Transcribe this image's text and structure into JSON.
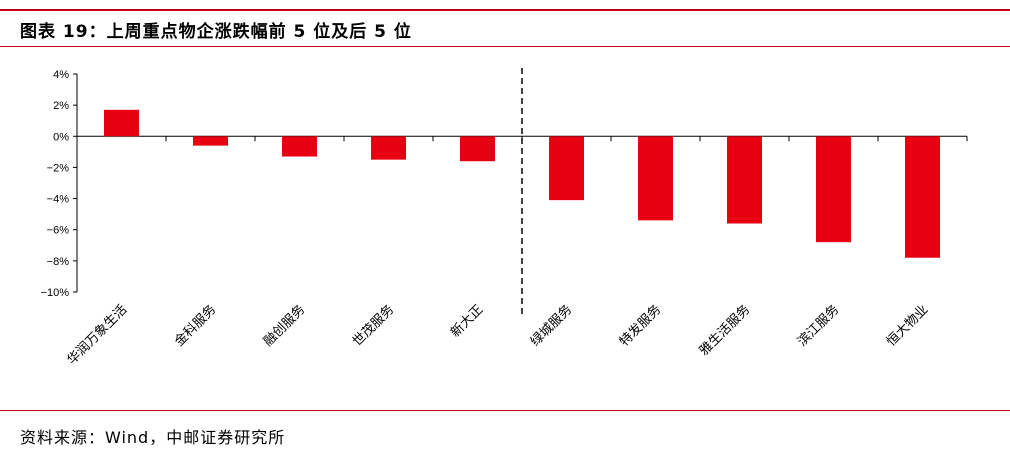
{
  "header": {
    "title": "图表 19：上周重点物企涨跌幅前 5 位及后 5 位"
  },
  "footer": {
    "source": "资料来源：Wind，中邮证券研究所"
  },
  "chart_data": {
    "type": "bar",
    "title": "",
    "xlabel": "",
    "ylabel": "",
    "categories": [
      "华润万象生活",
      "金科服务",
      "融创服务",
      "世茂服务",
      "新大正",
      "绿城服务",
      "特发服务",
      "雅生活服务",
      "滨江服务",
      "恒大物业"
    ],
    "values": [
      1.7,
      -0.6,
      -1.3,
      -1.5,
      -1.6,
      -4.1,
      -5.4,
      -5.6,
      -6.8,
      -7.8
    ],
    "ylim": [
      -10,
      4
    ],
    "yticks": [
      4,
      2,
      0,
      -2,
      -4,
      -6,
      -8,
      -10
    ],
    "ytick_labels": [
      "4%",
      "2%",
      "0%",
      "−2%",
      "−4%",
      "−6%",
      "−8%",
      "−10%"
    ],
    "bar_color": "#e60012",
    "divider_after_index": 4,
    "grid": false,
    "legend": "none"
  }
}
